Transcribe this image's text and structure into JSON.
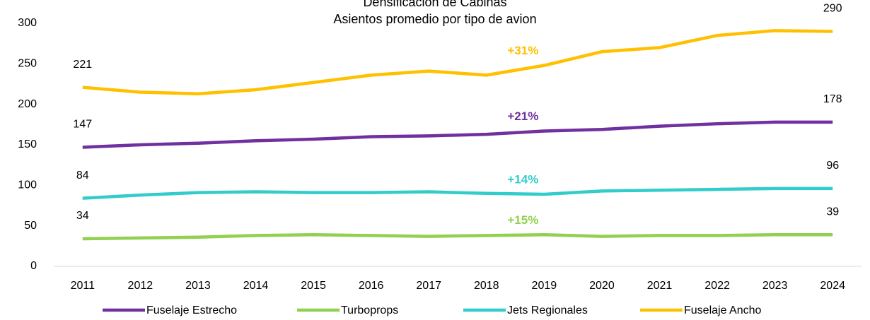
{
  "chart_data": {
    "type": "line",
    "title": "Densificación de Cabinas",
    "subtitle": "Asientos promedio por tipo de avion",
    "categories": [
      "2011",
      "2012",
      "2013",
      "2014",
      "2015",
      "2016",
      "2017",
      "2018",
      "2019",
      "2020",
      "2021",
      "2022",
      "2023",
      "2024"
    ],
    "ylim": [
      0,
      300
    ],
    "yticks": [
      0,
      50,
      100,
      150,
      200,
      250,
      300
    ],
    "grid": false,
    "legend": "bottom",
    "series": [
      {
        "name": "Fuselaje Estrecho",
        "color": "#7030a0",
        "annotation": "+21%",
        "values": [
          147,
          150,
          152,
          155,
          157,
          160,
          161,
          163,
          167,
          169,
          173,
          176,
          178,
          178
        ]
      },
      {
        "name": "Turboprops",
        "color": "#92d050",
        "annotation": "+15%",
        "values": [
          34,
          35,
          36,
          38,
          39,
          38,
          37,
          38,
          39,
          37,
          38,
          38,
          39,
          39
        ]
      },
      {
        "name": "Jets Regionales",
        "color": "#33cccc",
        "annotation": "+14%",
        "values": [
          84,
          88,
          91,
          92,
          91,
          91,
          92,
          90,
          89,
          93,
          94,
          95,
          96,
          96
        ]
      },
      {
        "name": "Fuselaje Ancho",
        "color": "#ffc000",
        "annotation": "+31%",
        "values": [
          221,
          215,
          213,
          218,
          227,
          236,
          241,
          236,
          248,
          265,
          270,
          285,
          291,
          290
        ]
      }
    ]
  }
}
